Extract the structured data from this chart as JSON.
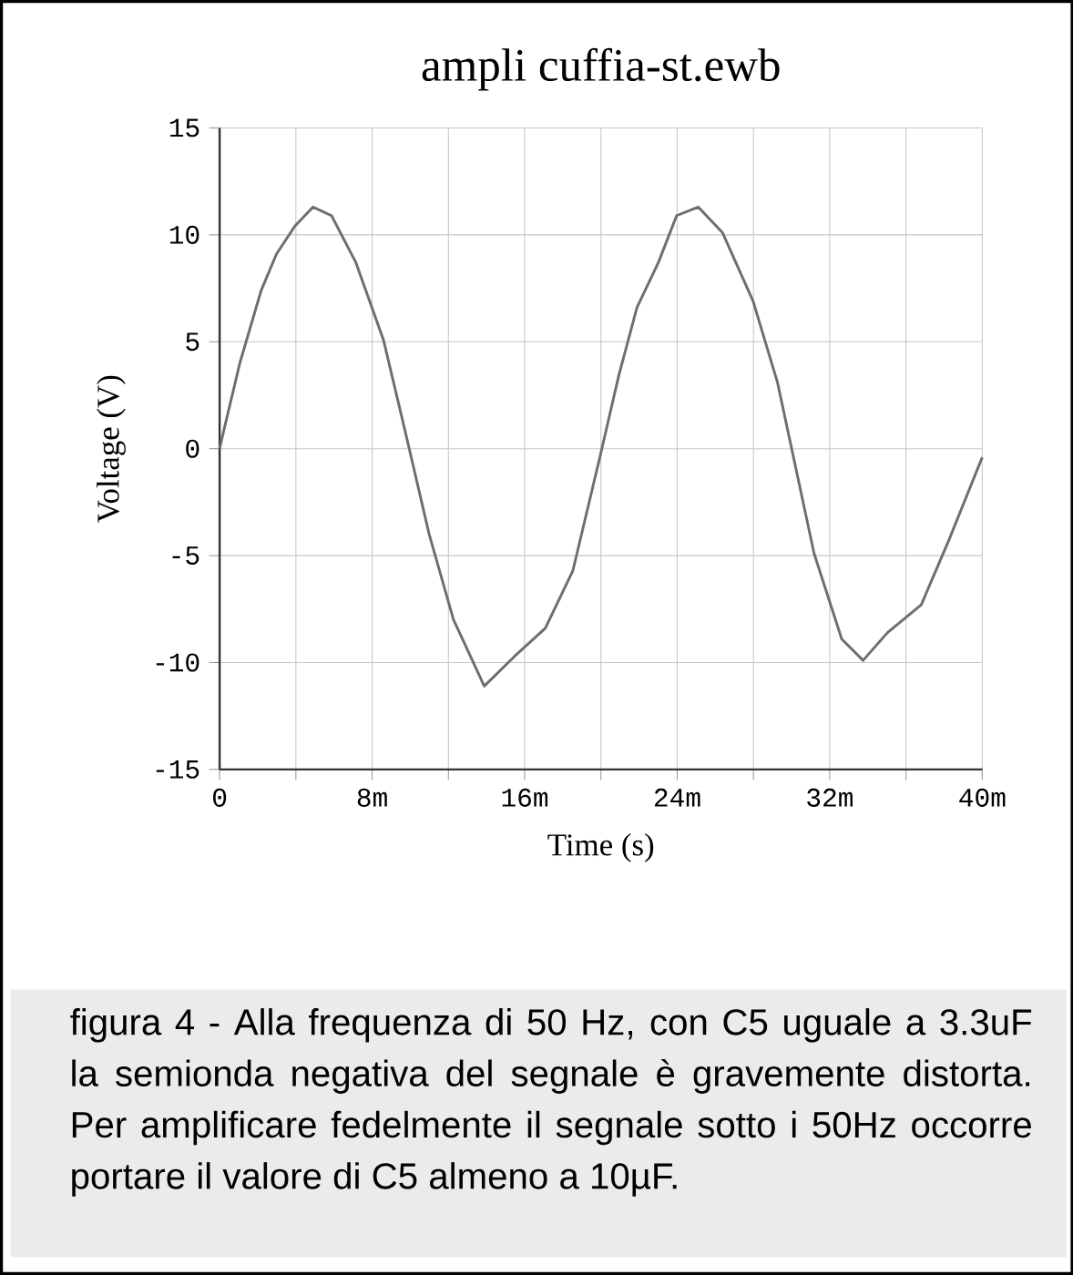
{
  "chart_data": {
    "type": "line",
    "title": "ampli cuffia-st.ewb",
    "xlabel": "Time (s)",
    "ylabel": "Voltage (V)",
    "x": [
      0,
      0.26,
      1.06,
      2.18,
      2.98,
      3.94,
      4.9,
      5.87,
      7.15,
      8.59,
      9.71,
      10.99,
      12.27,
      13.88,
      15.48,
      17.08,
      18.53,
      19.97,
      20.93,
      21.89,
      23.01,
      23.97,
      25.1,
      26.38,
      27.98,
      29.26,
      31.18,
      32.63,
      33.75,
      35.03,
      36.8,
      38.24,
      40
    ],
    "values": [
      0,
      1.0,
      4.0,
      7.4,
      9.1,
      10.4,
      11.3,
      10.9,
      8.7,
      5.1,
      0.9,
      -4.0,
      -8.0,
      -11.1,
      -9.7,
      -8.4,
      -5.7,
      -0.3,
      3.4,
      6.6,
      8.7,
      10.9,
      11.3,
      10.1,
      6.9,
      3.1,
      -4.9,
      -8.9,
      -9.9,
      -8.6,
      -7.3,
      -4.3,
      -0.4
    ],
    "color": "#6e6e6e",
    "xlim": [
      0,
      40
    ],
    "ylim": [
      -15,
      15
    ],
    "xticks": [
      0,
      {
        "value": 4,
        "label": null
      },
      {
        "value": 8,
        "label": "8m"
      },
      {
        "value": 12,
        "label": null
      },
      {
        "value": 16,
        "label": "16m"
      },
      {
        "value": 20,
        "label": null
      },
      {
        "value": 24,
        "label": "24m"
      },
      {
        "value": 28,
        "label": null
      },
      {
        "value": 32,
        "label": "32m"
      },
      {
        "value": 36,
        "label": null
      },
      {
        "value": 40,
        "label": "40m"
      }
    ],
    "yticks": [
      -15,
      -10,
      -5,
      0,
      5,
      10,
      15
    ],
    "grid": true,
    "annotations": [
      "figura 4 - Alla frequenza di 50 Hz, con C5 uguale a 3.3uF la semionda negativa del segnale è gravemente distorta. Per amplificare fedelmente il segnale sotto i 50Hz occorre portare il valore di C5 almeno a 10µF."
    ]
  }
}
